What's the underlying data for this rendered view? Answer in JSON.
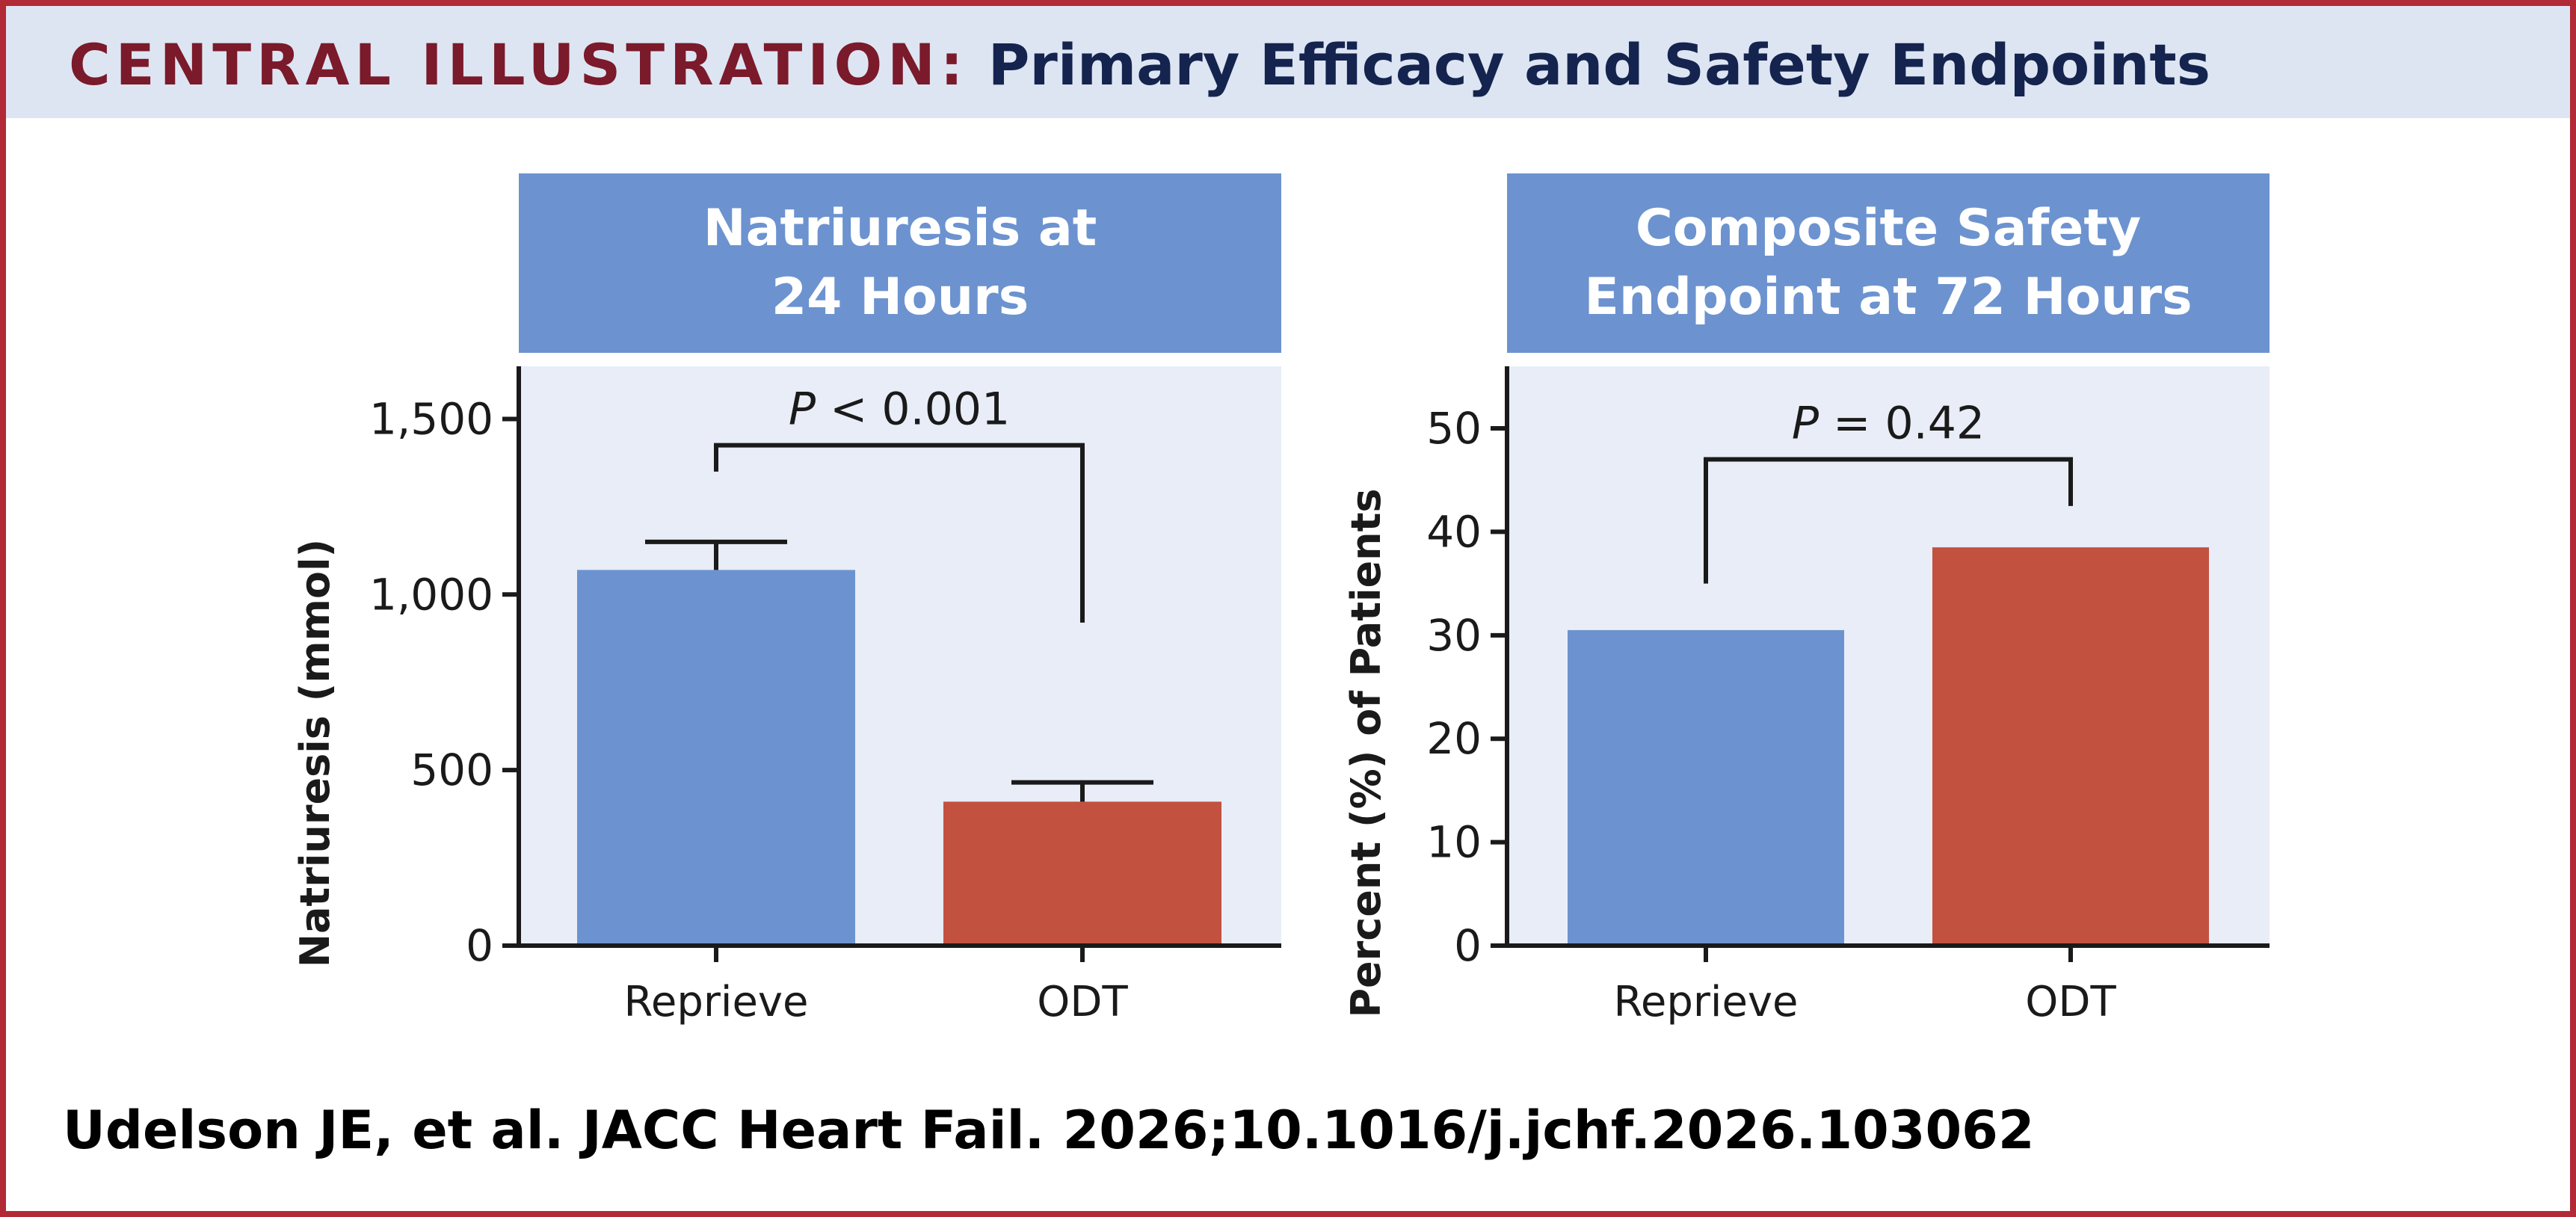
{
  "header": {
    "label": "CENTRAL ILLUSTRATION:",
    "subtitle": "Primary Efficacy and Safety Endpoints"
  },
  "citation": "Udelson JE, et al. JACC Heart Fail. 2026;10.1016/j.jchf.2026.103062",
  "colors": {
    "frame": "#b22a35",
    "header_band": "#dde5f3",
    "header_label": "#7a1a2a",
    "header_subtitle": "#14244e",
    "banner": "#6c93cf",
    "plot_background": "#e8edf7",
    "reprieve": "#6c93cf",
    "odt": "#c25140"
  },
  "chart_data": [
    {
      "type": "bar",
      "title": "Natriuresis at\n24 Hours",
      "xlabel": "",
      "ylabel": "Natriuresis (mmol)",
      "categories": [
        "Reprieve",
        "ODT"
      ],
      "values": [
        1070,
        410
      ],
      "error_upper": [
        1150,
        465
      ],
      "bar_colors": [
        "#6c93cf",
        "#c25140"
      ],
      "ylim": [
        0,
        1650
      ],
      "yticks": [
        0,
        500,
        1000,
        1500
      ],
      "ytick_labels": [
        "0",
        "500",
        "1,000",
        "1,500"
      ],
      "grid": false,
      "annotation": {
        "italic_part": "P",
        "rest": " < 0.001",
        "bracket_left_end": 1350,
        "bracket_right_end": 920,
        "bracket_top": 1425
      }
    },
    {
      "type": "bar",
      "title": "Composite Safety\nEndpoint at 72 Hours",
      "xlabel": "",
      "ylabel": "Percent (%) of Patients",
      "categories": [
        "Reprieve",
        "ODT"
      ],
      "values": [
        30.5,
        38.5
      ],
      "bar_colors": [
        "#6c93cf",
        "#c25140"
      ],
      "ylim": [
        0,
        56
      ],
      "yticks": [
        0,
        10,
        20,
        30,
        40,
        50
      ],
      "ytick_labels": [
        "0",
        "10",
        "20",
        "30",
        "40",
        "50"
      ],
      "grid": false,
      "annotation": {
        "italic_part": "P",
        "rest": " = 0.42",
        "bracket_left_end": 35,
        "bracket_right_end": 42.5,
        "bracket_top": 47
      }
    }
  ]
}
